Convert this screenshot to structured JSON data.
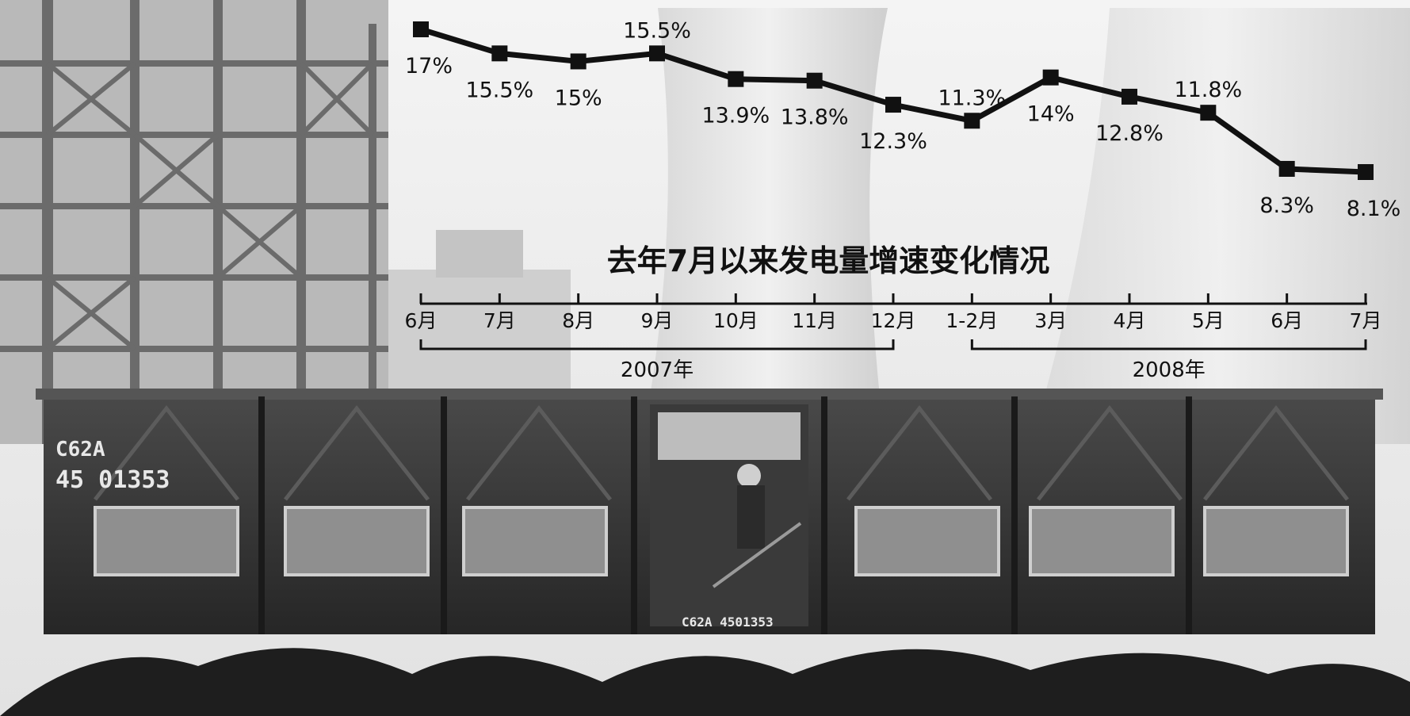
{
  "chart_data": {
    "type": "line",
    "title": "去年7月以来发电量增速变化情况",
    "categories": [
      "6月",
      "7月",
      "8月",
      "9月",
      "10月",
      "11月",
      "12月",
      "1-2月",
      "3月",
      "4月",
      "5月",
      "6月",
      "7月"
    ],
    "values": [
      17,
      15.5,
      15,
      15.5,
      13.9,
      13.8,
      12.3,
      11.3,
      14,
      12.8,
      11.8,
      8.3,
      8.1
    ],
    "value_labels": [
      "17%",
      "15.5%",
      "15%",
      "15.5%",
      "13.9%",
      "13.8%",
      "12.3%",
      "11.3%",
      "14%",
      "12.8%",
      "11.8%",
      "8.3%",
      "8.1%"
    ],
    "year_groups": [
      {
        "label": "2007年",
        "from": 0,
        "to": 6
      },
      {
        "label": "2008年",
        "from": 7,
        "to": 12
      }
    ],
    "ylim": [
      6,
      18
    ],
    "grid": false,
    "line_color": "#111111"
  },
  "photo": {
    "wagon_model": "C62A",
    "wagon_number": "45  01353",
    "wagon_door_code": "C62A  4501353"
  }
}
